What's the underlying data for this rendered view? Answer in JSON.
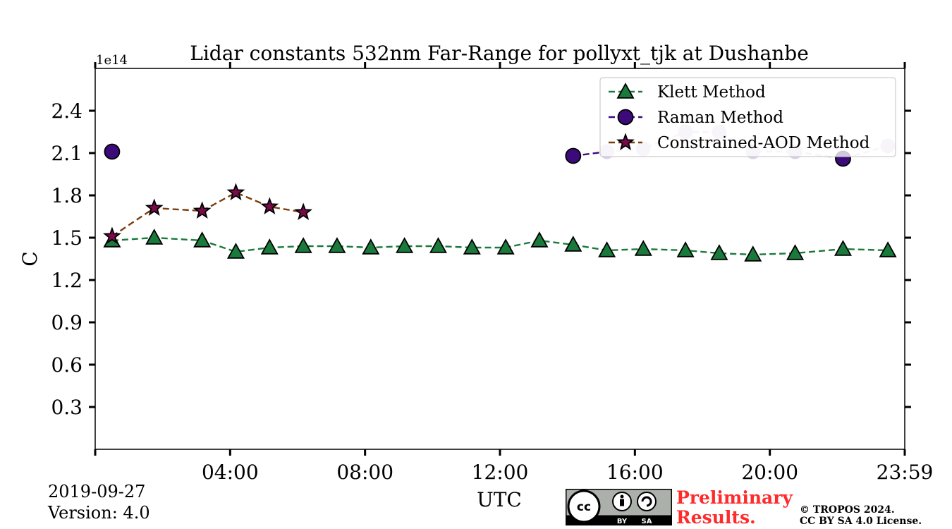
{
  "chart_data": {
    "type": "line",
    "title": "Lidar constants 532nm Far-Range for pollyxt_tjk at Dushanbe",
    "xlabel": "UTC",
    "ylabel": "C",
    "y_multiplier_label": "1e14",
    "xlim": [
      0,
      24
    ],
    "ylim": [
      0,
      2.7
    ],
    "x_ticks": [
      {
        "value": 0,
        "label": ""
      },
      {
        "value": 4,
        "label": "04:00"
      },
      {
        "value": 8,
        "label": "08:00"
      },
      {
        "value": 12,
        "label": "12:00"
      },
      {
        "value": 16,
        "label": "16:00"
      },
      {
        "value": 20,
        "label": "20:00"
      },
      {
        "value": 24,
        "label": "23:59"
      }
    ],
    "y_ticks": [
      {
        "value": 0.3,
        "label": "0.3"
      },
      {
        "value": 0.6,
        "label": "0.6"
      },
      {
        "value": 0.9,
        "label": "0.9"
      },
      {
        "value": 1.2,
        "label": "1.2"
      },
      {
        "value": 1.5,
        "label": "1.5"
      },
      {
        "value": 1.8,
        "label": "1.8"
      },
      {
        "value": 2.1,
        "label": "2.1"
      },
      {
        "value": 2.4,
        "label": "2.4"
      }
    ],
    "legend_position": "top-right",
    "series": [
      {
        "name": "Klett Method",
        "color": "#1a7a3c",
        "line_color": "#1a7a3c",
        "marker": "triangle",
        "x": [
          0.5,
          1.75,
          3.17,
          4.17,
          5.17,
          6.17,
          7.17,
          8.17,
          9.17,
          10.17,
          11.17,
          12.17,
          13.17,
          14.17,
          15.17,
          16.25,
          17.5,
          18.5,
          19.5,
          20.75,
          22.17,
          23.5
        ],
        "y": [
          1.48,
          1.5,
          1.48,
          1.4,
          1.43,
          1.44,
          1.44,
          1.43,
          1.44,
          1.44,
          1.43,
          1.43,
          1.48,
          1.45,
          1.41,
          1.42,
          1.41,
          1.39,
          1.38,
          1.39,
          1.42,
          1.41
        ]
      },
      {
        "name": "Raman Method",
        "color": "#3d0a7a",
        "line_color": "#3d0a7a",
        "marker": "circle",
        "x": [
          0.5,
          14.17,
          15.17,
          16.25,
          17.5,
          18.5,
          19.5,
          20.75,
          22.17,
          23.5
        ],
        "y": [
          2.11,
          2.08,
          2.11,
          2.13,
          2.25,
          2.25,
          2.11,
          2.11,
          2.06,
          2.15
        ]
      },
      {
        "name": "Constrained-AOD Method",
        "color": "#7a0a4a",
        "line_color": "#7a3c0a",
        "marker": "star",
        "x": [
          0.5,
          1.75,
          3.17,
          4.17,
          5.17,
          6.17
        ],
        "y": [
          1.51,
          1.71,
          1.69,
          1.82,
          1.72,
          1.68
        ]
      }
    ]
  },
  "footer": {
    "date": "2019-09-27",
    "version": "Version: 4.0",
    "preliminary_line1": "Preliminary",
    "preliminary_line2": "Results.",
    "copyright_line1": "© TROPOS 2024.",
    "copyright_line2": "CC BY SA 4.0 License."
  },
  "license_badge": {
    "cc": "cc",
    "by": "BY",
    "sa": "SA"
  }
}
